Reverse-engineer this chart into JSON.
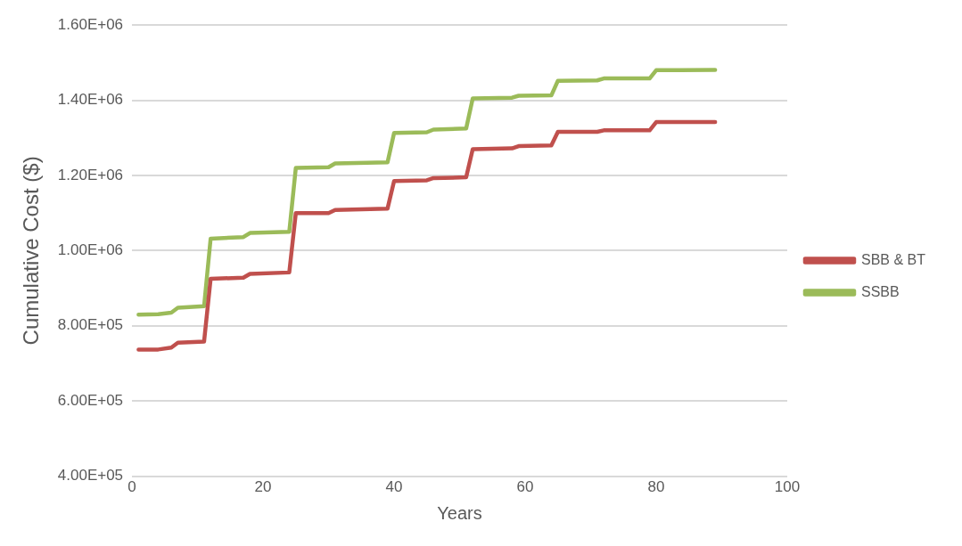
{
  "chart_data": {
    "type": "line",
    "xlabel": "Years",
    "ylabel": "Cumulative Cost ($)",
    "xlim": [
      0,
      100
    ],
    "xticks": [
      0,
      20,
      40,
      60,
      80,
      100
    ],
    "ylim": [
      400000,
      1600000
    ],
    "yticks": [
      {
        "value": 400000,
        "label": "4.00E+05"
      },
      {
        "value": 600000,
        "label": "6.00E+05"
      },
      {
        "value": 800000,
        "label": "8.00E+05"
      },
      {
        "value": 1000000,
        "label": "1.00E+06"
      },
      {
        "value": 1200000,
        "label": "1.20E+06"
      },
      {
        "value": 1400000,
        "label": "1.40E+06"
      },
      {
        "value": 1600000,
        "label": "1.60E+06"
      }
    ],
    "grid": "y",
    "legend": "right",
    "marker": "none",
    "series": [
      {
        "name": "SBB & BT",
        "color": "#c0504d",
        "x": [
          1,
          4,
          6,
          7,
          11,
          12,
          17,
          18,
          24,
          25,
          30,
          31,
          39,
          40,
          45,
          46,
          51,
          52,
          58,
          59,
          64,
          65,
          71,
          72,
          79,
          80,
          89
        ],
        "values": [
          737000,
          737000,
          742000,
          755000,
          758000,
          925000,
          928000,
          938000,
          942000,
          1100000,
          1100000,
          1108000,
          1112000,
          1185000,
          1187000,
          1193000,
          1195000,
          1270000,
          1272000,
          1278000,
          1280000,
          1316000,
          1316000,
          1320000,
          1320000,
          1342000,
          1342000
        ]
      },
      {
        "name": "SSBB",
        "color": "#9bbb59",
        "x": [
          1,
          4,
          6,
          7,
          11,
          12,
          17,
          18,
          24,
          25,
          30,
          31,
          39,
          40,
          45,
          46,
          51,
          52,
          58,
          59,
          64,
          65,
          71,
          72,
          79,
          80,
          89
        ],
        "values": [
          830000,
          831000,
          835000,
          848000,
          852000,
          1032000,
          1036000,
          1047000,
          1050000,
          1220000,
          1222000,
          1232000,
          1235000,
          1313000,
          1315000,
          1322000,
          1325000,
          1405000,
          1407000,
          1412000,
          1413000,
          1452000,
          1453000,
          1458000,
          1458000,
          1480000,
          1481000
        ]
      }
    ]
  }
}
